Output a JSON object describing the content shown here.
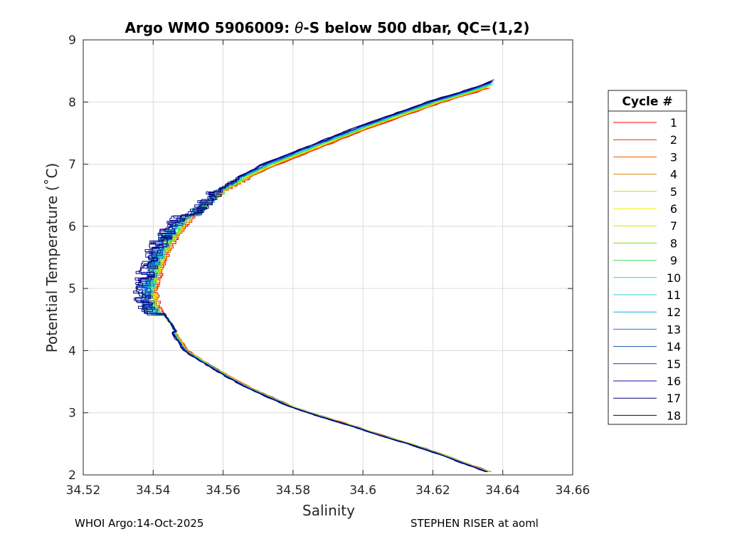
{
  "chart_data": {
    "type": "line",
    "title_prefix": "Argo WMO 5906009: ",
    "title_theta": "θ",
    "title_suffix": "-S below 500 dbar,  QC=(1,2)",
    "xlabel": "Salinity",
    "ylabel": "Potential Temperature (˚C)",
    "xlim": [
      34.52,
      34.66
    ],
    "ylim": [
      2,
      9
    ],
    "xticks": [
      34.52,
      34.54,
      34.56,
      34.58,
      34.6,
      34.62,
      34.64,
      34.66
    ],
    "xtick_labels": [
      "34.52",
      "34.54",
      "34.56",
      "34.58",
      "34.6",
      "34.62",
      "34.64",
      "34.66"
    ],
    "yticks": [
      2,
      3,
      4,
      5,
      6,
      7,
      8,
      9
    ],
    "ytick_labels": [
      "2",
      "3",
      "4",
      "5",
      "6",
      "7",
      "8",
      "9"
    ],
    "grid": true,
    "legend": {
      "title": "Cycle #",
      "placement": "right-outside",
      "entries": [
        "1",
        "2",
        "3",
        "4",
        "5",
        "6",
        "7",
        "8",
        "9",
        "10",
        "11",
        "12",
        "13",
        "14",
        "15",
        "16",
        "17",
        "18"
      ]
    },
    "series_colors": [
      "#ff0000",
      "#f02400",
      "#e85a00",
      "#d98c00",
      "#e6d200",
      "#f0f000",
      "#c8ee00",
      "#80e000",
      "#40e060",
      "#20e0b0",
      "#20d8e0",
      "#20a8e8",
      "#1878c8",
      "#1050b0",
      "#1030c0",
      "#1010a8",
      "#000080",
      "#000070"
    ],
    "profile_base": [
      [
        34.6365,
        2.05
      ],
      [
        34.629,
        2.2
      ],
      [
        34.622,
        2.35
      ],
      [
        34.614,
        2.5
      ],
      [
        34.605,
        2.65
      ],
      [
        34.597,
        2.8
      ],
      [
        34.588,
        2.95
      ],
      [
        34.58,
        3.1
      ],
      [
        34.574,
        3.25
      ],
      [
        34.568,
        3.4
      ],
      [
        34.563,
        3.55
      ],
      [
        34.5585,
        3.7
      ],
      [
        34.554,
        3.85
      ],
      [
        34.55,
        4.0
      ],
      [
        34.5475,
        4.2
      ],
      [
        34.5455,
        4.4
      ],
      [
        34.543,
        4.6
      ],
      [
        34.5415,
        4.8
      ],
      [
        34.541,
        5.0
      ],
      [
        34.542,
        5.2
      ],
      [
        34.543,
        5.4
      ],
      [
        34.5445,
        5.6
      ],
      [
        34.5465,
        5.8
      ],
      [
        34.549,
        6.0
      ],
      [
        34.552,
        6.2
      ],
      [
        34.556,
        6.4
      ],
      [
        34.561,
        6.6
      ],
      [
        34.568,
        6.8
      ],
      [
        34.576,
        7.0
      ],
      [
        34.585,
        7.2
      ],
      [
        34.594,
        7.4
      ],
      [
        34.603,
        7.6
      ],
      [
        34.613,
        7.8
      ],
      [
        34.623,
        8.0
      ],
      [
        34.632,
        8.15
      ],
      [
        34.6385,
        8.27
      ],
      [
        34.642,
        8.35
      ]
    ]
  },
  "footer": {
    "left": "WHOI Argo:14-Oct-2025",
    "right": "STEPHEN RISER at aoml"
  }
}
